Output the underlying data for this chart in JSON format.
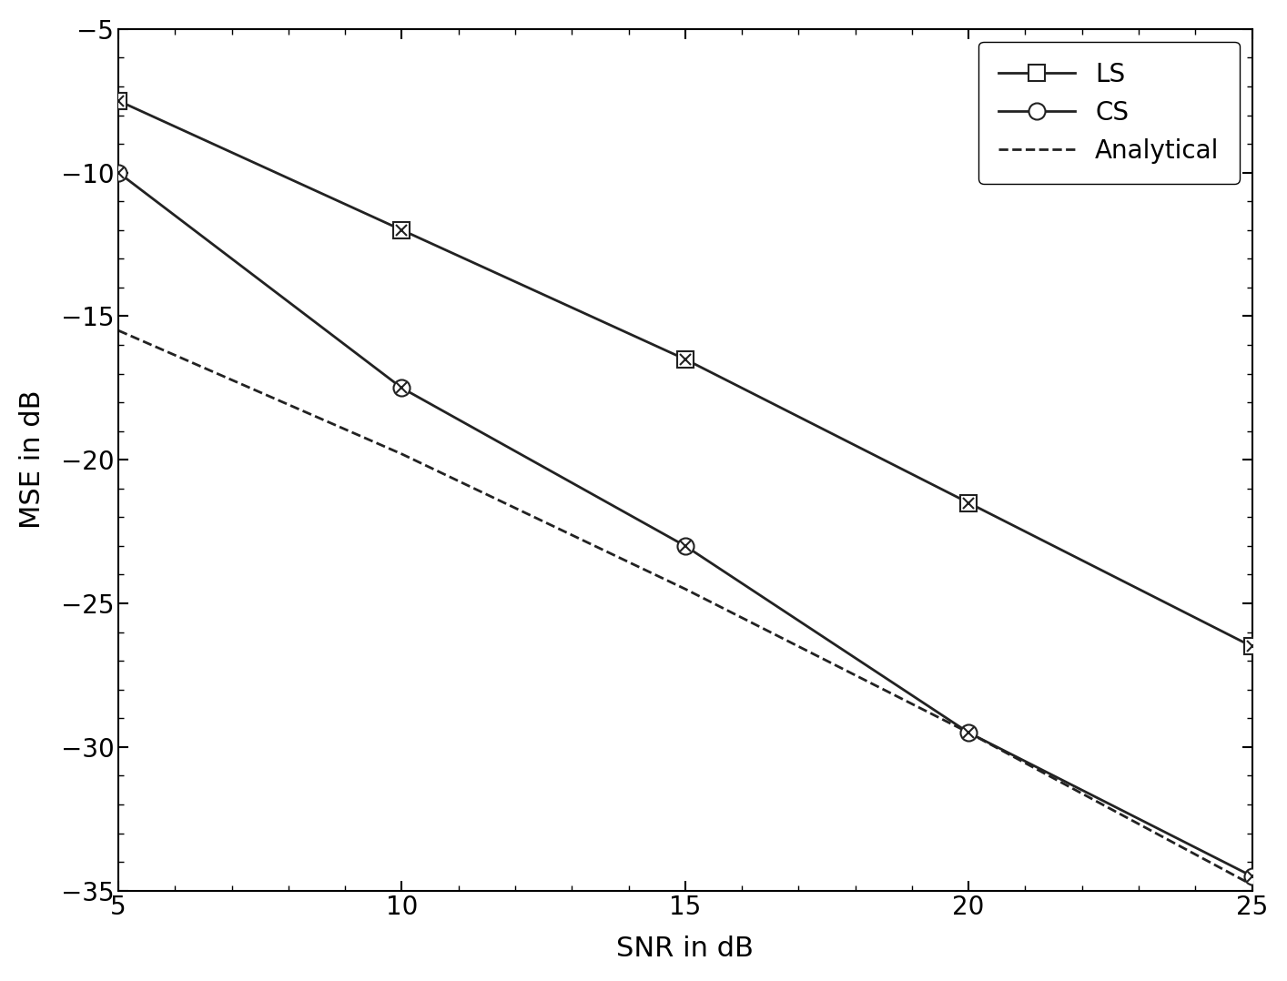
{
  "snr": [
    5,
    10,
    15,
    20,
    25
  ],
  "ls_mse": [
    -7.5,
    -12.0,
    -16.5,
    -21.5,
    -26.5
  ],
  "cs_mse": [
    -10.0,
    -17.5,
    -23.0,
    -29.5,
    -34.5
  ],
  "analytical_snr": [
    5,
    10,
    15,
    20,
    25
  ],
  "analytical_mse": [
    -15.5,
    -19.8,
    -24.5,
    -29.5,
    -34.8
  ],
  "ls_label": "LS",
  "cs_label": "CS",
  "analytical_label": "Analytical",
  "xlabel": "SNR in dB",
  "ylabel": "MSE in dB",
  "xlim": [
    5,
    25
  ],
  "ylim": [
    -35,
    -5
  ],
  "yticks": [
    -35,
    -30,
    -25,
    -20,
    -15,
    -10,
    -5
  ],
  "xticks": [
    5,
    10,
    15,
    20,
    25
  ],
  "line_color": "#222222",
  "background_color": "#ffffff",
  "legend_loc": "upper right"
}
